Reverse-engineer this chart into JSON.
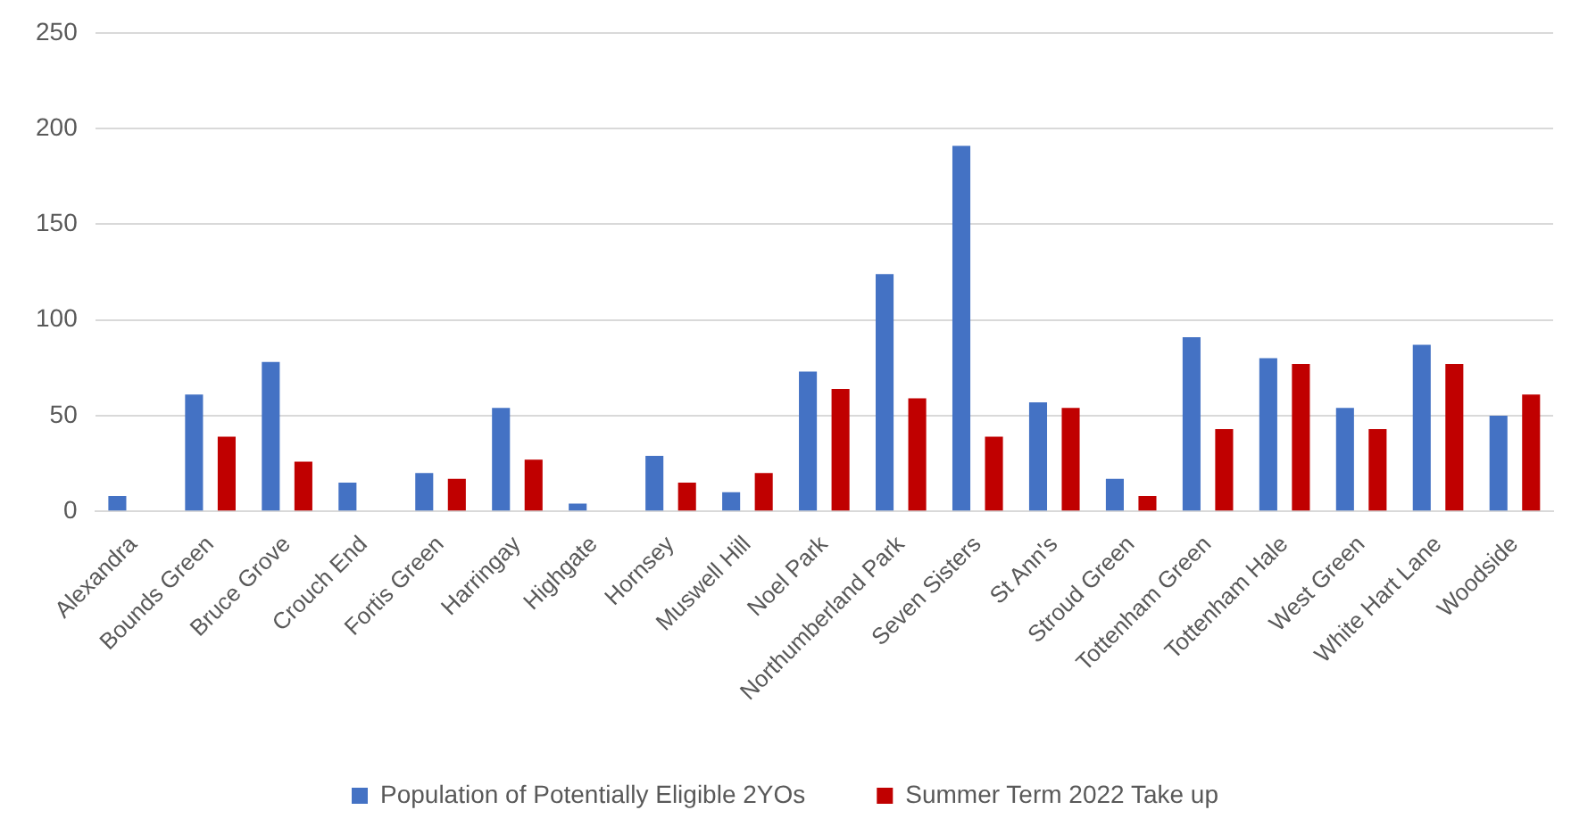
{
  "chart_data": {
    "type": "bar",
    "categories": [
      "Alexandra",
      "Bounds Green",
      "Bruce Grove",
      "Crouch End",
      "Fortis Green",
      "Harringay",
      "Highgate",
      "Hornsey",
      "Muswell Hill",
      "Noel Park",
      "Northumberland Park",
      "Seven Sisters",
      "St Ann's",
      "Stroud Green",
      "Tottenham Green",
      "Tottenham Hale",
      "West Green",
      "White Hart Lane",
      "Woodside"
    ],
    "series": [
      {
        "name": "Population of Potentially Eligible 2YOs",
        "color": "#4472c4",
        "values": [
          8,
          61,
          78,
          15,
          20,
          54,
          4,
          29,
          10,
          73,
          124,
          191,
          57,
          17,
          91,
          80,
          54,
          87,
          50
        ]
      },
      {
        "name": "Summer Term 2022 Take up",
        "color": "#c00000",
        "values": [
          0,
          39,
          26,
          0,
          17,
          27,
          0,
          15,
          20,
          64,
          59,
          39,
          54,
          8,
          43,
          77,
          43,
          77,
          61
        ]
      }
    ],
    "ylim": [
      0,
      250
    ],
    "yticks": [
      0,
      50,
      100,
      150,
      200,
      250
    ],
    "grid": "y",
    "legend": "bottom"
  }
}
